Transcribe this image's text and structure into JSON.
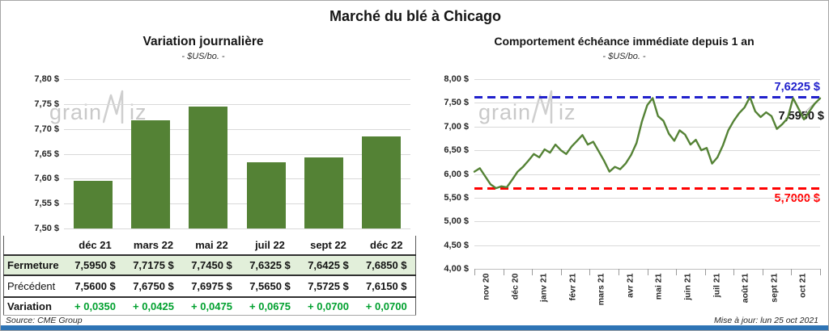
{
  "title": "Marché du blé à Chicago",
  "footer": {
    "source": "Source: CME Group",
    "updated": "Mise à jour: lun 25 oct 2021"
  },
  "watermark": {
    "part1": "grain",
    "part2": "iz"
  },
  "colors": {
    "green": "#548235",
    "light_green_row": "#e2efda",
    "variation_green": "#00a02e",
    "blue": "#2121cc",
    "red": "#ff0000",
    "grid": "#d9d9d9",
    "watermark": "#c9c9c9",
    "bottom_strip": "#2e74b5"
  },
  "left_chart": {
    "title": "Variation journalière",
    "subtitle": "- $US/bo. -",
    "y_tick_labels": [
      "7,80 $",
      "7,75 $",
      "7,70 $",
      "7,65 $",
      "7,60 $",
      "7,55 $",
      "7,50 $"
    ]
  },
  "right_chart": {
    "title": "Comportement échéance immédiate depuis 1 an",
    "subtitle": "- $US/bo. -",
    "y_tick_labels": [
      "8,00 $",
      "7,50 $",
      "7,00 $",
      "6,50 $",
      "6,00 $",
      "5,50 $",
      "5,00 $",
      "4,50 $",
      "4,00 $"
    ],
    "x_tick_labels": [
      "nov 20",
      "déc 20",
      "janv 21",
      "févr 21",
      "mars 21",
      "avr 21",
      "mai 21",
      "juin 21",
      "juil 21",
      "août 21",
      "sept 21",
      "oct 21"
    ],
    "high_label": "7,6225 $",
    "last_label": "7,5950 $",
    "low_label": "5,7000 $"
  },
  "table": {
    "columns": [
      "déc 21",
      "mars 22",
      "mai 22",
      "juil 22",
      "sept 22",
      "déc 22"
    ],
    "rows": [
      {
        "label": "Fermeture",
        "style": "close",
        "values": [
          "7,5950 $",
          "7,7175 $",
          "7,7450 $",
          "7,6325 $",
          "7,6425 $",
          "7,6850 $"
        ]
      },
      {
        "label": "Précédent",
        "style": "previous",
        "values": [
          "7,5600 $",
          "7,6750 $",
          "7,6975 $",
          "7,5650 $",
          "7,5725 $",
          "7,6150 $"
        ]
      },
      {
        "label": "Variation",
        "style": "variation",
        "values": [
          "+ 0,0350",
          "+ 0,0425",
          "+ 0,0475",
          "+ 0,0675",
          "+ 0,0700",
          "+ 0,0700"
        ]
      }
    ]
  },
  "chart_data": [
    {
      "type": "bar",
      "title": "Variation journalière",
      "subtitle": "$US/bo.",
      "categories": [
        "déc 21",
        "mars 22",
        "mai 22",
        "juil 22",
        "sept 22",
        "déc 22"
      ],
      "values": [
        7.595,
        7.7175,
        7.745,
        7.6325,
        7.6425,
        7.685
      ],
      "ylim": [
        7.5,
        7.8
      ],
      "ytick_step": 0.05,
      "grid": true,
      "bar_color": "#548235"
    },
    {
      "type": "line",
      "title": "Comportement échéance immédiate depuis 1 an",
      "subtitle": "$US/bo.",
      "x_months": [
        "nov 20",
        "déc 20",
        "janv 21",
        "févr 21",
        "mars 21",
        "avr 21",
        "mai 21",
        "juin 21",
        "juil 21",
        "août 21",
        "sept 21",
        "oct 21"
      ],
      "values": [
        6.05,
        6.12,
        5.95,
        5.78,
        5.7,
        5.74,
        5.72,
        5.88,
        6.05,
        6.15,
        6.28,
        6.42,
        6.35,
        6.52,
        6.45,
        6.62,
        6.5,
        6.42,
        6.58,
        6.7,
        6.82,
        6.62,
        6.68,
        6.48,
        6.28,
        6.05,
        6.15,
        6.1,
        6.22,
        6.4,
        6.65,
        7.1,
        7.45,
        7.6,
        7.22,
        7.12,
        6.85,
        6.7,
        6.92,
        6.83,
        6.62,
        6.72,
        6.5,
        6.55,
        6.22,
        6.35,
        6.6,
        6.92,
        7.12,
        7.28,
        7.4,
        7.62,
        7.32,
        7.2,
        7.3,
        7.22,
        6.95,
        7.05,
        7.18,
        7.6,
        7.38,
        7.15,
        7.32,
        7.48,
        7.595
      ],
      "ylim": [
        4.0,
        8.0
      ],
      "ytick_step": 0.5,
      "grid": true,
      "line_color": "#548235",
      "reference_lines": [
        {
          "value": 7.6225,
          "label": "7,6225 $",
          "color": "#2121cc",
          "style": "dashed",
          "role": "52w-high"
        },
        {
          "value": 5.7,
          "label": "5,7000 $",
          "color": "#ff0000",
          "style": "dashed",
          "role": "52w-low"
        }
      ],
      "last_point": {
        "value": 7.595,
        "label": "7,5950 $"
      }
    }
  ]
}
